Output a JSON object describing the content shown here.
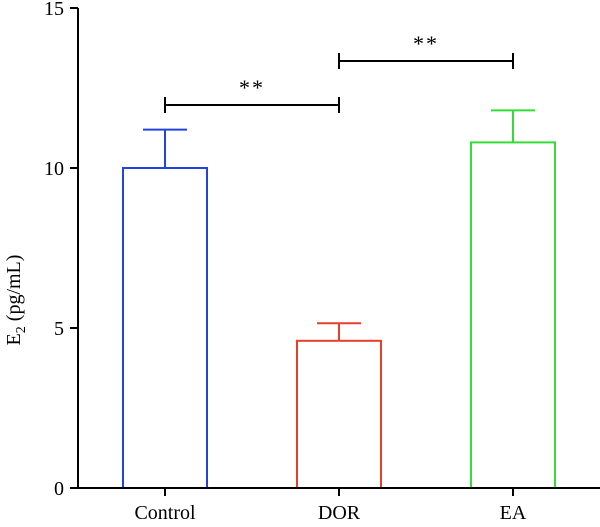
{
  "chart_data": {
    "type": "bar",
    "title": "",
    "xlabel": "",
    "ylabel": "E",
    "ylabel_subscript": "2",
    "ylabel_unit": " (pg/mL)",
    "categories": [
      "Control",
      "DOR",
      "EA"
    ],
    "values": [
      10.0,
      4.6,
      10.8
    ],
    "errors": [
      1.2,
      0.55,
      1.0
    ],
    "colors": [
      "#2244dd",
      "#e6402a",
      "#33dd33"
    ],
    "ylim": [
      0,
      15
    ],
    "yticks": [
      0,
      5,
      10,
      15
    ],
    "grid": false,
    "significance": [
      {
        "from": 0,
        "to": 1,
        "label": "**"
      },
      {
        "from": 1,
        "to": 2,
        "label": "**"
      }
    ]
  }
}
